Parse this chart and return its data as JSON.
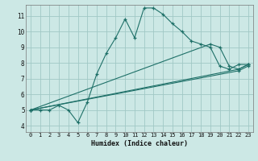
{
  "xlabel": "Humidex (Indice chaleur)",
  "bg_color": "#cce8e5",
  "grid_color": "#a0c8c5",
  "line_color": "#1e7068",
  "xlim": [
    -0.5,
    23.5
  ],
  "ylim": [
    3.6,
    11.7
  ],
  "xticks": [
    0,
    1,
    2,
    3,
    4,
    5,
    6,
    7,
    8,
    9,
    10,
    11,
    12,
    13,
    14,
    15,
    16,
    17,
    18,
    19,
    20,
    21,
    22,
    23
  ],
  "yticks": [
    4,
    5,
    6,
    7,
    8,
    9,
    10,
    11
  ],
  "line1_x": [
    0,
    1,
    2,
    3,
    4,
    5,
    6,
    7,
    8,
    9,
    10,
    11,
    12,
    13,
    14,
    15,
    16,
    17,
    18,
    19,
    20,
    21,
    22,
    23
  ],
  "line1_y": [
    5.0,
    5.0,
    5.0,
    5.3,
    5.0,
    4.2,
    5.5,
    7.3,
    8.6,
    9.6,
    10.8,
    9.6,
    11.5,
    11.5,
    11.1,
    10.5,
    10.0,
    9.4,
    9.2,
    9.0,
    7.8,
    7.6,
    7.9,
    7.9
  ],
  "line2_x": [
    0,
    19,
    20,
    21,
    22,
    23
  ],
  "line2_y": [
    5.0,
    9.2,
    9.0,
    7.8,
    7.6,
    7.9
  ],
  "line3_x": [
    0,
    22,
    23
  ],
  "line3_y": [
    5.0,
    7.6,
    7.9
  ],
  "line4_x": [
    0,
    22,
    23
  ],
  "line4_y": [
    5.0,
    7.5,
    7.8
  ],
  "xlabel_fontsize": 6.0,
  "tick_fontsize_x": 5.0,
  "tick_fontsize_y": 5.5
}
